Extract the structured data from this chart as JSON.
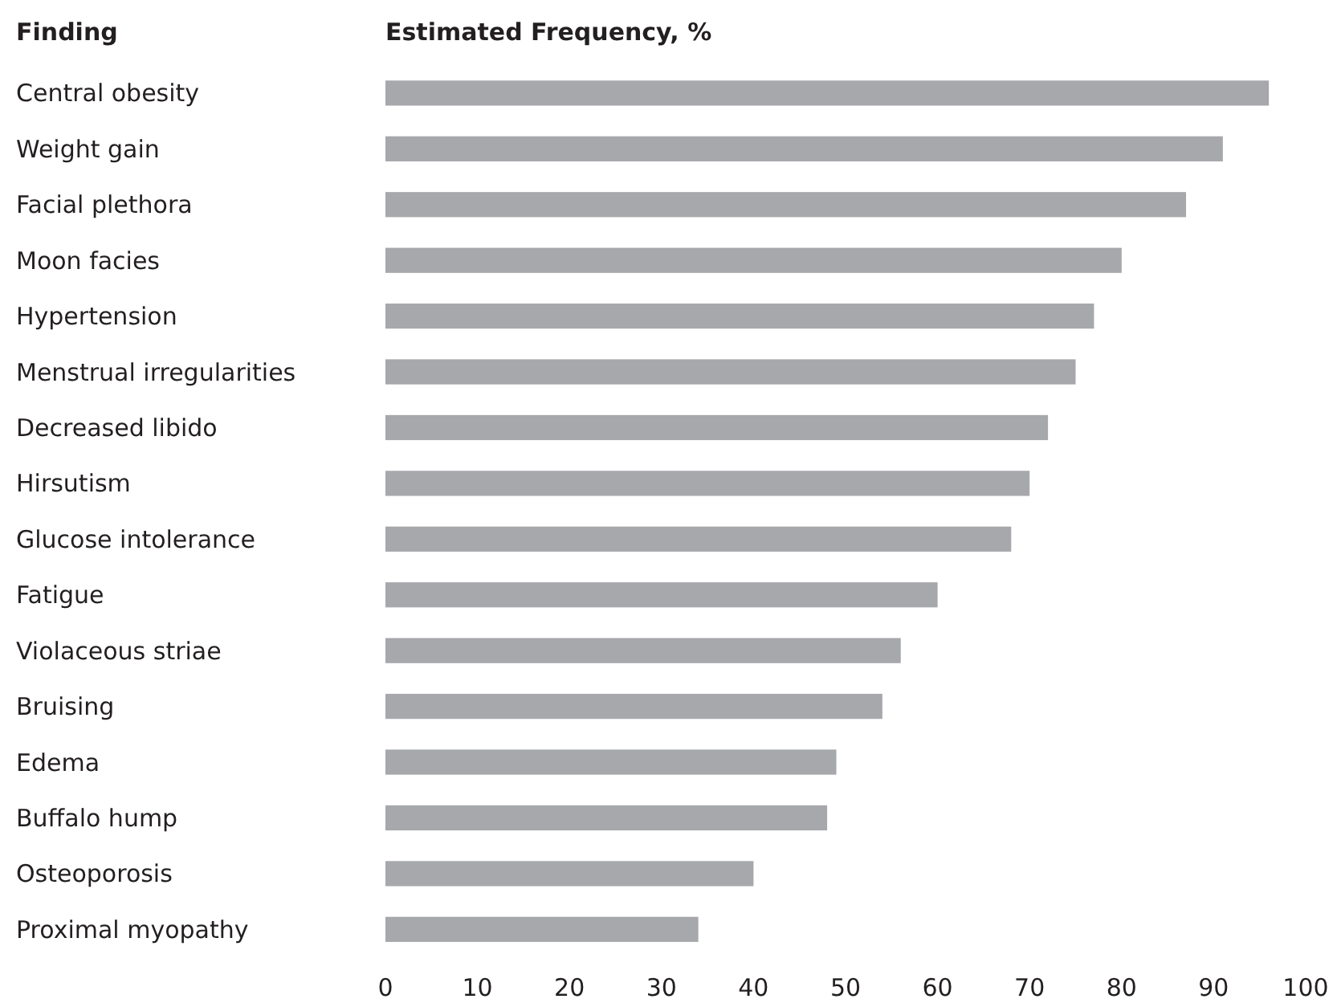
{
  "chart_data": {
    "type": "bar",
    "orientation": "horizontal",
    "ylabel": "Finding",
    "xlabel": "Estimated Frequency, %",
    "categories": [
      "Central obesity",
      "Weight gain",
      "Facial plethora",
      "Moon facies",
      "Hypertension",
      "Menstrual irregularities",
      "Decreased libido",
      "Hirsutism",
      "Glucose intolerance",
      "Fatigue",
      "Violaceous striae",
      "Bruising",
      "Edema",
      "Buffalo hump",
      "Osteoporosis",
      "Proximal myopathy"
    ],
    "values": [
      96,
      91,
      87,
      80,
      77,
      75,
      72,
      70,
      68,
      60,
      56,
      54,
      49,
      48,
      40,
      34
    ],
    "color": "#a7a8ab",
    "xlim": [
      0,
      100
    ],
    "xticks": [
      0,
      10,
      20,
      30,
      40,
      50,
      60,
      70,
      80,
      90,
      100
    ],
    "grid": false
  }
}
